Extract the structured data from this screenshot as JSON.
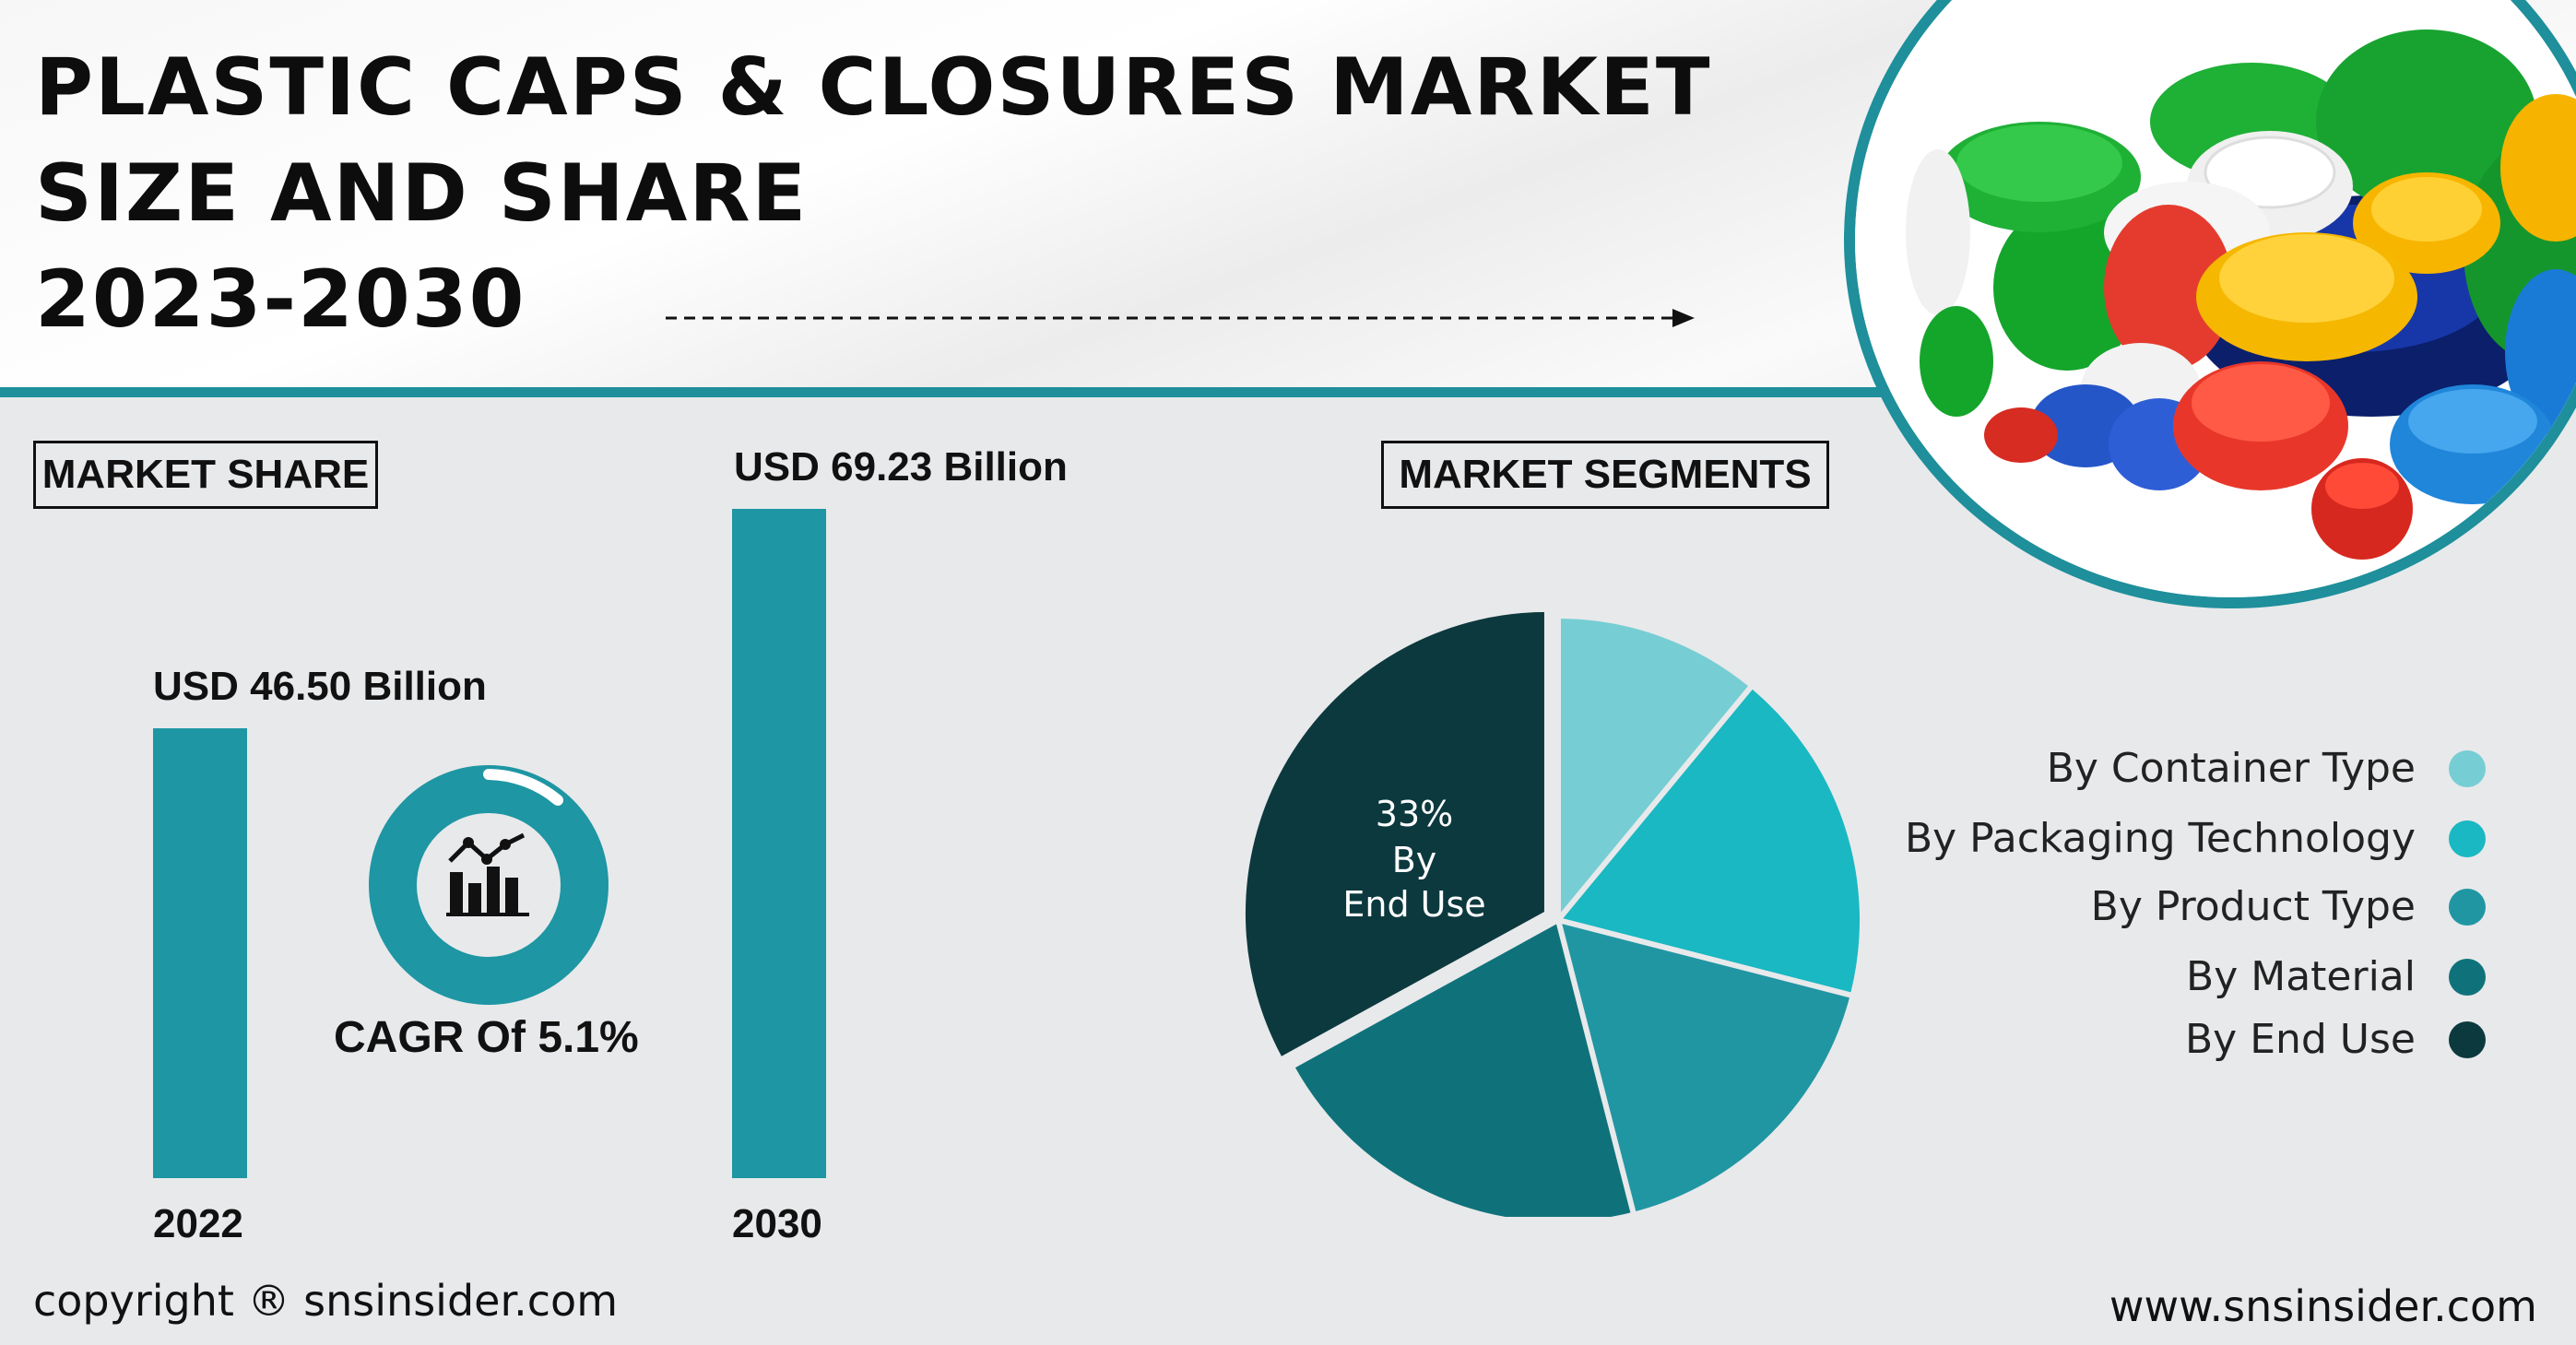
{
  "header": {
    "title_lines": [
      "PLASTIC CAPS & CLOSURES MARKET",
      "SIZE AND SHARE",
      "2023-2030"
    ]
  },
  "market_share": {
    "label": "MARKET SHARE",
    "cagr": "CAGR Of 5.1%"
  },
  "market_segments": {
    "label": "MARKET SEGMENTS",
    "highlight_percent": "33%",
    "highlight_by": "By",
    "highlight_segment": "End Use"
  },
  "footer": {
    "copyright": "copyright ® snsinsider.com",
    "website": "www.snsinsider.com"
  },
  "colors": {
    "accent": "#1e8f9b",
    "bar": "#1e96a3",
    "segments": [
      "#76ced4",
      "#1ab8c2",
      "#2196a3",
      "#0f727b",
      "#0c393e"
    ]
  },
  "icons": [
    "chart-trend-icon",
    "plastic-caps-photo"
  ],
  "chart_data": [
    {
      "type": "bar",
      "categories": [
        "2022",
        "2030"
      ],
      "values": [
        46.5,
        69.23
      ],
      "value_labels": [
        "USD 46.50 Billion",
        "USD 69.23 Billion"
      ],
      "ylim": [
        0,
        69.23
      ]
    },
    {
      "type": "pie",
      "labels": [
        "By Container Type",
        "By Packaging Technology",
        "By Product Type",
        "By Material",
        "By End Use"
      ],
      "values": [
        11,
        18,
        17,
        21,
        33
      ],
      "exploded": "By End Use",
      "legend": "right"
    }
  ]
}
